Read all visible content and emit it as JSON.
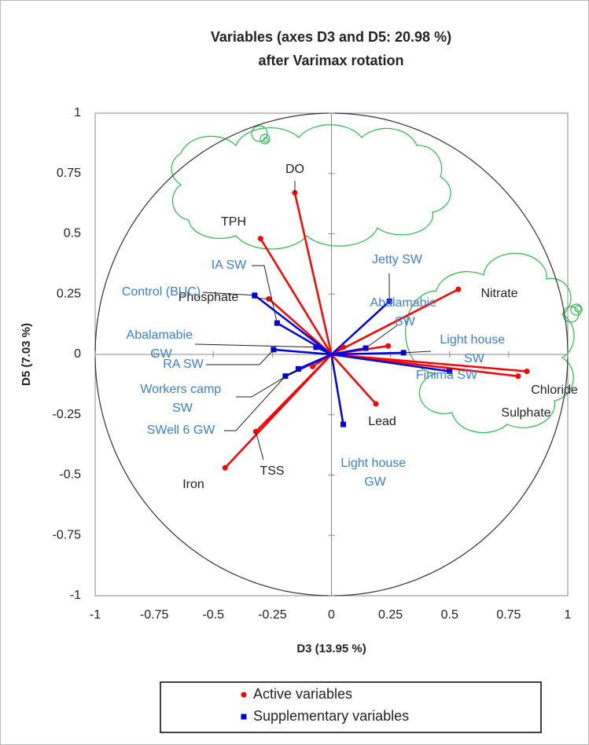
{
  "chart_data": {
    "type": "correlation-circle",
    "title": [
      "Variables (axes D3 and D5: 20.98 %)",
      "after Varimax rotation"
    ],
    "x_label": "D3 (13.95 %)",
    "y_label": "D5 (7.03 %)",
    "xlim": [
      -1,
      1
    ],
    "ylim": [
      -1,
      1
    ],
    "xticks": [
      -1,
      -0.75,
      -0.5,
      -0.25,
      0,
      0.25,
      0.5,
      0.75,
      1
    ],
    "yticks": [
      -1,
      -0.75,
      -0.5,
      -0.25,
      0,
      0.25,
      0.5,
      0.75,
      1
    ],
    "series": [
      {
        "name": "Active variables",
        "color": "#ff0000",
        "marker": "circle",
        "labels": [
          "DO",
          "TPH",
          "Phosphate",
          "Nitrate",
          "Chloride",
          "Sulphate",
          "Lead",
          "TSS",
          "Iron",
          null,
          null,
          null
        ],
        "x": [
          -0.155,
          -0.3,
          -0.265,
          0.537,
          0.827,
          0.79,
          0.188,
          -0.32,
          -0.45,
          -0.08,
          0.05,
          0.24
        ],
        "values": [
          0.67,
          0.48,
          0.23,
          0.27,
          -0.07,
          -0.09,
          -0.205,
          -0.32,
          -0.47,
          -0.05,
          0.03,
          0.035
        ]
      },
      {
        "name": "Supplementary variables",
        "color": "#0000e0",
        "marker": "square",
        "labels": [
          "IA SW",
          "Control (BUC)",
          "Jetty SW",
          "Abalamabie SW",
          "Light house SW",
          "Finima SW",
          "Light house GW",
          "Abalamabie GW",
          "RA SW",
          "Workers camp SW",
          "SWell 6 GW"
        ],
        "x": [
          -0.23,
          -0.325,
          0.245,
          0.145,
          0.305,
          0.5,
          0.05,
          -0.065,
          -0.245,
          -0.14,
          -0.195
        ],
        "values": [
          0.13,
          0.245,
          0.22,
          0.026,
          0.007,
          -0.07,
          -0.29,
          0.03,
          0.02,
          -0.06,
          -0.09
        ]
      }
    ]
  }
}
